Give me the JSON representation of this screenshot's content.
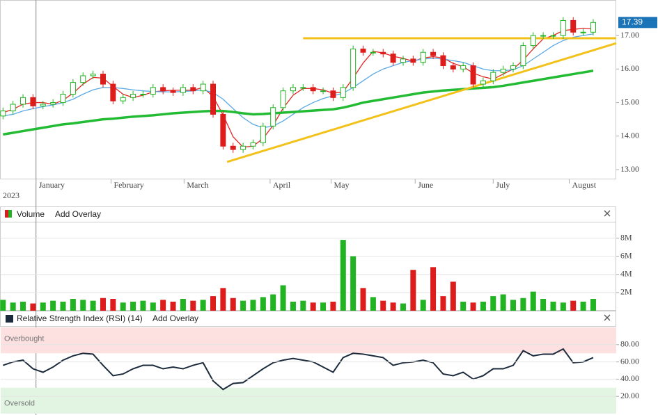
{
  "chart_data": [
    {
      "type": "candlestick",
      "open": [
        14.6,
        14.75,
        14.95,
        15.15,
        14.9,
        14.95,
        15.0,
        15.25,
        15.6,
        15.8,
        15.85,
        15.55,
        15.05,
        15.15,
        15.25,
        15.25,
        15.45,
        15.35,
        15.3,
        15.45,
        15.35,
        15.55,
        14.65,
        13.7,
        13.6,
        13.7,
        13.8,
        14.3,
        14.85,
        15.35,
        15.45,
        15.45,
        15.35,
        15.35,
        15.15,
        15.45,
        16.6,
        16.5,
        16.5,
        16.45,
        16.2,
        16.3,
        16.2,
        16.5,
        16.4,
        16.1,
        16.0,
        16.1,
        15.55,
        15.65,
        15.9,
        16.0,
        16.1,
        16.7,
        17.0,
        17.0,
        17.0,
        17.45,
        17.1,
        17.1
      ],
      "high": [
        14.85,
        15.05,
        15.25,
        15.25,
        15.05,
        15.1,
        15.35,
        15.7,
        15.9,
        15.95,
        15.95,
        15.65,
        15.25,
        15.35,
        15.35,
        15.55,
        15.55,
        15.45,
        15.55,
        15.55,
        15.65,
        15.65,
        14.75,
        13.8,
        13.8,
        13.9,
        14.4,
        14.95,
        15.45,
        15.55,
        15.55,
        15.55,
        15.45,
        15.45,
        15.55,
        16.7,
        16.7,
        16.6,
        16.6,
        16.55,
        16.4,
        16.4,
        16.6,
        16.6,
        16.5,
        16.2,
        16.2,
        16.2,
        15.75,
        16.0,
        16.1,
        16.2,
        16.8,
        17.1,
        17.1,
        17.1,
        17.55,
        17.55,
        17.2,
        17.49
      ],
      "low": [
        14.5,
        14.65,
        14.85,
        14.8,
        14.8,
        14.85,
        14.9,
        15.15,
        15.5,
        15.7,
        15.45,
        14.95,
        14.95,
        15.05,
        15.15,
        15.15,
        15.25,
        15.2,
        15.2,
        15.25,
        15.25,
        14.55,
        13.6,
        13.5,
        13.5,
        13.6,
        13.7,
        14.2,
        14.75,
        15.25,
        15.35,
        15.25,
        15.25,
        15.05,
        15.05,
        15.35,
        16.4,
        16.4,
        16.35,
        16.1,
        16.1,
        16.1,
        16.1,
        16.3,
        16.0,
        15.9,
        15.9,
        15.45,
        15.45,
        15.55,
        15.8,
        15.9,
        16.0,
        16.6,
        16.9,
        16.9,
        16.9,
        17.0,
        17.0,
        17.0
      ],
      "close": [
        14.75,
        14.95,
        15.15,
        14.9,
        14.95,
        15.0,
        15.25,
        15.6,
        15.8,
        15.85,
        15.55,
        15.05,
        15.15,
        15.25,
        15.25,
        15.45,
        15.35,
        15.3,
        15.45,
        15.35,
        15.55,
        14.65,
        13.7,
        13.6,
        13.7,
        13.8,
        14.3,
        14.85,
        15.35,
        15.45,
        15.45,
        15.35,
        15.35,
        15.15,
        15.45,
        16.6,
        16.5,
        16.5,
        16.45,
        16.2,
        16.3,
        16.2,
        16.5,
        16.4,
        16.1,
        16.0,
        16.1,
        15.55,
        15.65,
        15.9,
        16.0,
        16.1,
        16.7,
        17.0,
        17.0,
        17.0,
        17.45,
        17.1,
        17.1,
        17.39
      ],
      "up_color": "#21b321",
      "down_color": "#dd1c1c",
      "lines": [
        {
          "color": "#e32626",
          "width": 1.3,
          "values": [
            14.7,
            14.8,
            14.95,
            15.0,
            15.0,
            14.95,
            15.07,
            15.28,
            15.55,
            15.75,
            15.73,
            15.48,
            15.25,
            15.15,
            15.22,
            15.32,
            15.35,
            15.37,
            15.37,
            15.37,
            15.45,
            15.18,
            14.63,
            13.98,
            13.67,
            13.7,
            13.93,
            14.32,
            14.83,
            15.22,
            15.42,
            15.42,
            15.38,
            15.28,
            15.32,
            15.73,
            16.18,
            16.53,
            16.48,
            16.38,
            16.32,
            16.23,
            16.33,
            16.37,
            16.33,
            16.17,
            16.07,
            15.88,
            15.77,
            15.7,
            15.85,
            16.0,
            16.27,
            16.6,
            16.9,
            17.0,
            17.15,
            17.18,
            17.22,
            17.2
          ]
        },
        {
          "color": "#5aa9e6",
          "width": 1.3,
          "values": [
            14.6,
            14.65,
            14.75,
            14.82,
            14.88,
            14.93,
            15.0,
            15.1,
            15.25,
            15.38,
            15.45,
            15.45,
            15.42,
            15.38,
            15.35,
            15.33,
            15.32,
            15.32,
            15.33,
            15.35,
            15.38,
            15.3,
            15.1,
            14.82,
            14.55,
            14.35,
            14.25,
            14.3,
            14.45,
            14.65,
            14.85,
            15.0,
            15.12,
            15.2,
            15.28,
            15.45,
            15.65,
            15.85,
            16.0,
            16.1,
            16.2,
            16.25,
            16.3,
            16.32,
            16.3,
            16.25,
            16.2,
            16.1,
            16.0,
            15.95,
            15.95,
            15.98,
            16.1,
            16.3,
            16.5,
            16.7,
            16.85,
            16.95,
            17.0,
            17.05
          ]
        },
        {
          "color": "#22bb33",
          "width": 3.5,
          "values": [
            14.05,
            14.1,
            14.15,
            14.2,
            14.25,
            14.3,
            14.35,
            14.38,
            14.42,
            14.46,
            14.5,
            14.52,
            14.55,
            14.58,
            14.6,
            14.62,
            14.65,
            14.68,
            14.7,
            14.72,
            14.74,
            14.75,
            14.75,
            14.72,
            14.68,
            14.65,
            14.66,
            14.68,
            14.7,
            14.72,
            14.74,
            14.76,
            14.78,
            14.8,
            14.85,
            14.92,
            15.0,
            15.05,
            15.1,
            15.15,
            15.2,
            15.25,
            15.3,
            15.33,
            15.36,
            15.38,
            15.4,
            15.42,
            15.44,
            15.46,
            15.5,
            15.55,
            15.6,
            15.65,
            15.7,
            15.75,
            15.8,
            15.85,
            15.9,
            15.95
          ]
        }
      ],
      "trendlines": [
        {
          "color": "#f2c21b",
          "x": [
            30,
            61.3
          ],
          "values": [
            16.92,
            16.92
          ]
        },
        {
          "color": "#f2c21b",
          "x": [
            22.4,
            61.3
          ],
          "values": [
            13.23,
            16.77
          ]
        }
      ],
      "last_price": 17.39,
      "last_price_color": "#1b74b8",
      "ylim": [
        12.71,
        18.06
      ],
      "yticks": [
        {
          "value": 13,
          "label": "13.00"
        },
        {
          "value": 14,
          "label": "14.00"
        },
        {
          "value": 15,
          "label": "15.00"
        },
        {
          "value": 16,
          "label": "16.00"
        },
        {
          "value": 17,
          "label": "17.00"
        }
      ],
      "xlim": [
        -0.3,
        61.3
      ],
      "xticks": [
        {
          "value": 3.3,
          "label": "January"
        },
        {
          "value": 10.8,
          "label": "February"
        },
        {
          "value": 18.1,
          "label": "March"
        },
        {
          "value": 26.7,
          "label": "April"
        },
        {
          "value": 32.8,
          "label": "May"
        },
        {
          "value": 41.2,
          "label": "June"
        },
        {
          "value": 49,
          "label": "July"
        },
        {
          "value": 56.6,
          "label": "August"
        }
      ],
      "year_label": "2023"
    },
    {
      "type": "bar",
      "title": "Volume",
      "overlay_button": "Add Overlay",
      "values": [
        1200000,
        900000,
        1000000,
        800000,
        900000,
        1100000,
        1000000,
        1300000,
        1200000,
        1100000,
        1400000,
        1300000,
        900000,
        1000000,
        1100000,
        900000,
        1200000,
        1000000,
        1300000,
        1100000,
        1200000,
        1600000,
        2500000,
        1400000,
        1100000,
        1200000,
        1500000,
        1800000,
        2800000,
        1000000,
        1100000,
        900000,
        900000,
        1000000,
        7800000,
        6000000,
        2500000,
        1500000,
        1100000,
        900000,
        800000,
        4500000,
        1200000,
        4800000,
        1600000,
        3200000,
        1000000,
        900000,
        1000000,
        1600000,
        1800000,
        1200000,
        1400000,
        2100000,
        1300000,
        1000000,
        900000,
        1100000,
        1000000,
        1300000
      ],
      "up_color": "#21b321",
      "down_color": "#dd1c1c",
      "ylim": [
        0,
        9800000
      ],
      "yticks": [
        {
          "value": 2000000,
          "label": "2M"
        },
        {
          "value": 4000000,
          "label": "4M"
        },
        {
          "value": 6000000,
          "label": "6M"
        },
        {
          "value": 8000000,
          "label": "8M"
        }
      ],
      "grid": true
    },
    {
      "type": "line",
      "title": "Relative Strength Index (RSI) (14)",
      "overlay_button": "Add Overlay",
      "values": [
        56,
        60,
        62,
        52,
        48,
        54,
        62,
        67,
        70,
        69,
        56,
        44,
        46,
        52,
        56,
        56,
        52,
        54,
        52,
        56,
        59,
        38,
        28,
        35,
        36,
        44,
        52,
        59,
        62,
        64,
        62,
        60,
        54,
        48,
        65,
        70,
        69,
        67,
        65,
        56,
        59,
        60,
        62,
        59,
        46,
        44,
        48,
        40,
        44,
        52,
        52,
        56,
        73,
        67,
        69,
        69,
        75,
        59,
        60,
        65
      ],
      "color": "#1c2b3c",
      "zones": [
        {
          "label": "Overbought",
          "range": [
            70,
            100
          ],
          "color": "#fde1e1"
        },
        {
          "label": "Oversold",
          "range": [
            0,
            30
          ],
          "color": "#e2f5e2"
        }
      ],
      "ylim": [
        0,
        100
      ],
      "yticks": [
        {
          "value": 20,
          "label": "20.00"
        },
        {
          "value": 40,
          "label": "40.00"
        },
        {
          "value": 60,
          "label": "60.00"
        },
        {
          "value": 80,
          "label": "80.00"
        }
      ],
      "grid": true
    }
  ]
}
